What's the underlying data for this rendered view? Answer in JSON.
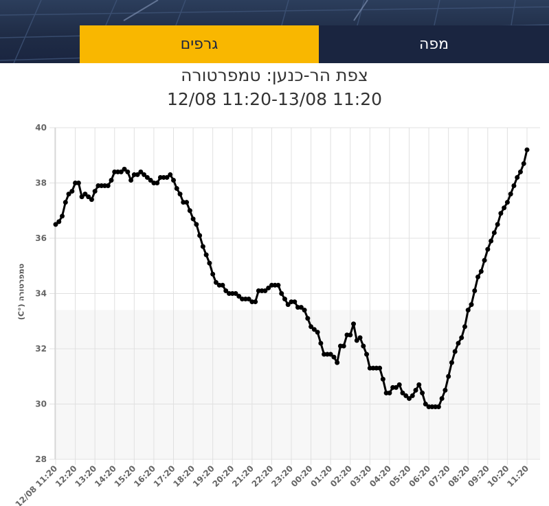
{
  "tabs": [
    {
      "label": "גרפים",
      "active": true
    },
    {
      "label": "מפה",
      "active": false
    }
  ],
  "colors": {
    "accent": "#f9b700",
    "navy": "#1a2540",
    "line": "#000000",
    "grid": "#e0e0e0",
    "lower_band": "#f7f7f7"
  },
  "title": {
    "line1": "צפת הר-כנען: טמפרטורה",
    "line2": "12/08 11:20-13/08 11:20"
  },
  "chart_data": {
    "type": "line",
    "ylabel": "טמפרטורה (°C)",
    "ylim": [
      28,
      40
    ],
    "yticks": [
      28,
      30,
      32,
      34,
      36,
      38,
      40
    ],
    "xtick_labels": [
      "12/08 11:20",
      "12:20",
      "13:20",
      "14:20",
      "15:20",
      "16:20",
      "17:20",
      "18:20",
      "19:20",
      "20:20",
      "21:20",
      "22:20",
      "23:20",
      "00:20",
      "01:20",
      "02:20",
      "03:20",
      "04:20",
      "05:20",
      "06:20",
      "07:20",
      "08:20",
      "09:20",
      "10:20",
      "11:20"
    ],
    "grid": true,
    "interval_minutes": 10,
    "series": [
      {
        "values": [
          36.5,
          36.6,
          36.8,
          37.3,
          37.6,
          37.7,
          38.0,
          38.0,
          37.5,
          37.6,
          37.5,
          37.4,
          37.7,
          37.9,
          37.9,
          37.9,
          37.9,
          38.1,
          38.4,
          38.4,
          38.4,
          38.5,
          38.4,
          38.1,
          38.3,
          38.3,
          38.4,
          38.3,
          38.2,
          38.1,
          38.0,
          38.0,
          38.2,
          38.2,
          38.2,
          38.3,
          38.1,
          37.8,
          37.6,
          37.3,
          37.3,
          37.0,
          36.7,
          36.5,
          36.1,
          35.7,
          35.4,
          35.1,
          34.7,
          34.4,
          34.3,
          34.3,
          34.1,
          34.0,
          34.0,
          34.0,
          33.9,
          33.8,
          33.8,
          33.8,
          33.7,
          33.7,
          34.1,
          34.1,
          34.1,
          34.2,
          34.3,
          34.3,
          34.3,
          34.0,
          33.8,
          33.6,
          33.7,
          33.7,
          33.5,
          33.5,
          33.4,
          33.1,
          32.8,
          32.7,
          32.6,
          32.2,
          31.8,
          31.8,
          31.8,
          31.7,
          31.5,
          32.1,
          32.1,
          32.5,
          32.5,
          32.9,
          32.3,
          32.4,
          32.1,
          31.8,
          31.3,
          31.3,
          31.3,
          31.3,
          30.9,
          30.4,
          30.4,
          30.6,
          30.6,
          30.7,
          30.4,
          30.3,
          30.2,
          30.3,
          30.5,
          30.7,
          30.4,
          30.0,
          29.9,
          29.9,
          29.9,
          29.9,
          30.2,
          30.5,
          31.0,
          31.5,
          31.9,
          32.2,
          32.4,
          32.8,
          33.4,
          33.6,
          34.1,
          34.6,
          34.8,
          35.2,
          35.6,
          35.9,
          36.2,
          36.5,
          36.9,
          37.1,
          37.3,
          37.6,
          37.9,
          38.2,
          38.4,
          38.7,
          39.2
        ]
      }
    ]
  }
}
